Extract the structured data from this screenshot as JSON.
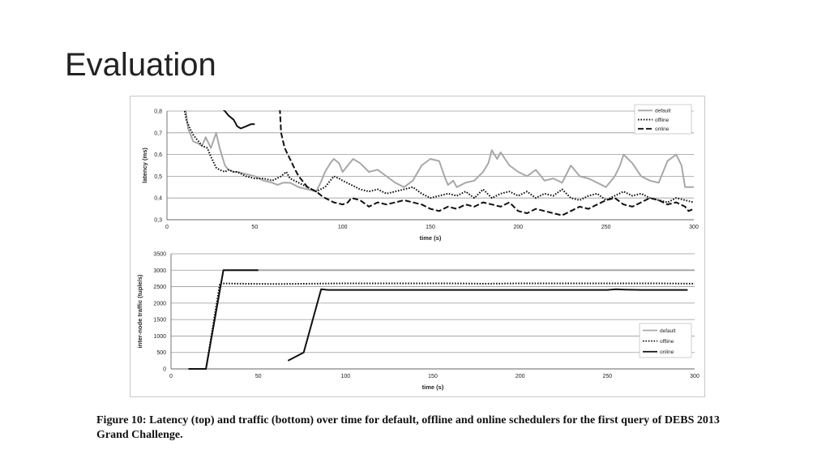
{
  "slide": {
    "title": "Evaluation"
  },
  "caption": "Figure 10: Latency (top) and traffic (bottom) over time for default, offline and online schedulers for the first query of DEBS 2013 Grand Challenge.",
  "chart_data": [
    {
      "type": "line",
      "title": "",
      "xlabel": "time (s)",
      "ylabel": "latency (ms)",
      "xlim": [
        0,
        300
      ],
      "ylim": [
        0.3,
        0.8
      ],
      "xticks": [
        "0",
        "50",
        "100",
        "150",
        "200",
        "250",
        "300"
      ],
      "yticks": [
        "0,3",
        "0,4",
        "0,5",
        "0,6",
        "0,7",
        "0,8"
      ],
      "grid": true,
      "legend": "top-right",
      "series": [
        {
          "name": "default",
          "style": "solid",
          "color": "#a8a8a8",
          "x": [
            10,
            12,
            15,
            18,
            20,
            22,
            25,
            28,
            30,
            33,
            35,
            38,
            40,
            45,
            50,
            55,
            60,
            63,
            66,
            70,
            75,
            80,
            85,
            88,
            90,
            93,
            95,
            98,
            100,
            103,
            106,
            110,
            115,
            120,
            125,
            130,
            135,
            140,
            145,
            150,
            155,
            158,
            160,
            163,
            165,
            170,
            175,
            180,
            183,
            185,
            188,
            190,
            195,
            200,
            205,
            210,
            215,
            220,
            225,
            230,
            235,
            240,
            245,
            250,
            255,
            258,
            260,
            265,
            270,
            275,
            280,
            285,
            290,
            293,
            295,
            300
          ],
          "y": [
            0.85,
            0.72,
            0.66,
            0.65,
            0.64,
            0.68,
            0.63,
            0.7,
            0.63,
            0.55,
            0.53,
            0.52,
            0.52,
            0.51,
            0.5,
            0.48,
            0.47,
            0.46,
            0.47,
            0.47,
            0.45,
            0.44,
            0.43,
            0.48,
            0.52,
            0.56,
            0.58,
            0.56,
            0.52,
            0.55,
            0.58,
            0.56,
            0.52,
            0.53,
            0.5,
            0.47,
            0.45,
            0.48,
            0.55,
            0.58,
            0.57,
            0.5,
            0.46,
            0.48,
            0.45,
            0.47,
            0.48,
            0.52,
            0.56,
            0.62,
            0.58,
            0.61,
            0.55,
            0.52,
            0.5,
            0.53,
            0.48,
            0.49,
            0.47,
            0.55,
            0.5,
            0.49,
            0.47,
            0.45,
            0.5,
            0.55,
            0.6,
            0.56,
            0.5,
            0.48,
            0.47,
            0.57,
            0.6,
            0.55,
            0.45,
            0.45
          ]
        },
        {
          "name": "offline",
          "style": "dotted",
          "color": "#111111",
          "x": [
            9,
            11,
            13,
            15,
            18,
            20,
            23,
            25,
            28,
            30,
            33,
            35,
            38,
            40,
            45,
            50,
            55,
            60,
            65,
            68,
            70,
            75,
            80,
            85,
            90,
            93,
            95,
            98,
            100,
            105,
            110,
            115,
            120,
            125,
            130,
            135,
            140,
            145,
            150,
            155,
            160,
            165,
            170,
            175,
            180,
            185,
            190,
            195,
            200,
            205,
            210,
            215,
            220,
            225,
            230,
            235,
            240,
            245,
            250,
            255,
            260,
            265,
            270,
            275,
            280,
            285,
            290,
            295,
            300
          ],
          "y": [
            0.85,
            0.76,
            0.72,
            0.69,
            0.66,
            0.64,
            0.63,
            0.59,
            0.54,
            0.53,
            0.52,
            0.53,
            0.52,
            0.52,
            0.5,
            0.49,
            0.49,
            0.48,
            0.5,
            0.52,
            0.49,
            0.47,
            0.45,
            0.43,
            0.45,
            0.48,
            0.5,
            0.49,
            0.48,
            0.46,
            0.44,
            0.43,
            0.44,
            0.42,
            0.43,
            0.44,
            0.45,
            0.42,
            0.4,
            0.41,
            0.42,
            0.41,
            0.43,
            0.4,
            0.44,
            0.4,
            0.42,
            0.43,
            0.41,
            0.43,
            0.4,
            0.42,
            0.41,
            0.44,
            0.4,
            0.39,
            0.41,
            0.42,
            0.39,
            0.41,
            0.43,
            0.41,
            0.42,
            0.4,
            0.39,
            0.38,
            0.4,
            0.39,
            0.38
          ]
        },
        {
          "name": "online",
          "style": "dashed",
          "color": "#111111",
          "x": [
            64,
            65,
            67,
            70,
            73,
            75,
            78,
            80,
            85,
            88,
            90,
            95,
            100,
            103,
            105,
            110,
            115,
            120,
            125,
            130,
            135,
            140,
            145,
            150,
            155,
            160,
            165,
            170,
            175,
            180,
            185,
            190,
            195,
            200,
            205,
            210,
            215,
            220,
            225,
            230,
            235,
            240,
            245,
            250,
            255,
            260,
            265,
            270,
            275,
            280,
            285,
            290,
            295,
            297,
            300
          ],
          "y": [
            0.85,
            0.7,
            0.63,
            0.58,
            0.53,
            0.5,
            0.47,
            0.45,
            0.43,
            0.41,
            0.4,
            0.38,
            0.37,
            0.38,
            0.4,
            0.39,
            0.36,
            0.38,
            0.37,
            0.38,
            0.39,
            0.38,
            0.37,
            0.35,
            0.34,
            0.36,
            0.35,
            0.37,
            0.36,
            0.38,
            0.37,
            0.36,
            0.38,
            0.34,
            0.33,
            0.35,
            0.34,
            0.33,
            0.32,
            0.34,
            0.36,
            0.35,
            0.37,
            0.39,
            0.4,
            0.37,
            0.36,
            0.38,
            0.4,
            0.39,
            0.37,
            0.38,
            0.36,
            0.34,
            0.35
          ]
        },
        {
          "name": "",
          "style": "solid",
          "color": "#111111",
          "x": [
            20,
            22,
            25,
            28,
            30,
            33,
            35,
            38,
            40,
            42,
            45,
            48,
            50
          ],
          "y": [
            0.85,
            0.85,
            0.84,
            0.83,
            0.82,
            0.8,
            0.78,
            0.76,
            0.73,
            0.72,
            0.73,
            0.74,
            0.74
          ]
        }
      ]
    },
    {
      "type": "line",
      "title": "",
      "xlabel": "time (s)",
      "ylabel": "inter-node traffic (tuple/s)",
      "xlim": [
        0,
        300
      ],
      "ylim": [
        0,
        3500
      ],
      "xticks": [
        "0",
        "50",
        "100",
        "150",
        "200",
        "250",
        "300"
      ],
      "yticks": [
        "0",
        "500",
        "1000",
        "1500",
        "2000",
        "2500",
        "3000",
        "3500"
      ],
      "grid": true,
      "legend": "bottom-right",
      "series": [
        {
          "name": "default",
          "style": "solid",
          "color": "#a8a8a8",
          "x": [
            10,
            20,
            30,
            50,
            300
          ],
          "y": [
            0,
            0,
            3000,
            3000,
            3000
          ]
        },
        {
          "name": "offline",
          "style": "dotted",
          "color": "#111111",
          "x": [
            10,
            20,
            28,
            40,
            60,
            80,
            100,
            130,
            160,
            180,
            200,
            230,
            260,
            280,
            300
          ],
          "y": [
            0,
            0,
            2600,
            2590,
            2580,
            2590,
            2600,
            2600,
            2600,
            2590,
            2600,
            2600,
            2600,
            2600,
            2590
          ]
        },
        {
          "name": "online",
          "style": "solid",
          "color": "#111111",
          "x": [
            67,
            76,
            86,
            90,
            100,
            150,
            200,
            250,
            255,
            260,
            270,
            296
          ],
          "y": [
            250,
            500,
            2420,
            2400,
            2400,
            2400,
            2400,
            2400,
            2420,
            2410,
            2400,
            2400
          ]
        },
        {
          "name": "",
          "style": "solid",
          "color": "#111111",
          "x": [
            10,
            20,
            30,
            50
          ],
          "y": [
            0,
            0,
            3000,
            3000
          ]
        }
      ]
    }
  ]
}
